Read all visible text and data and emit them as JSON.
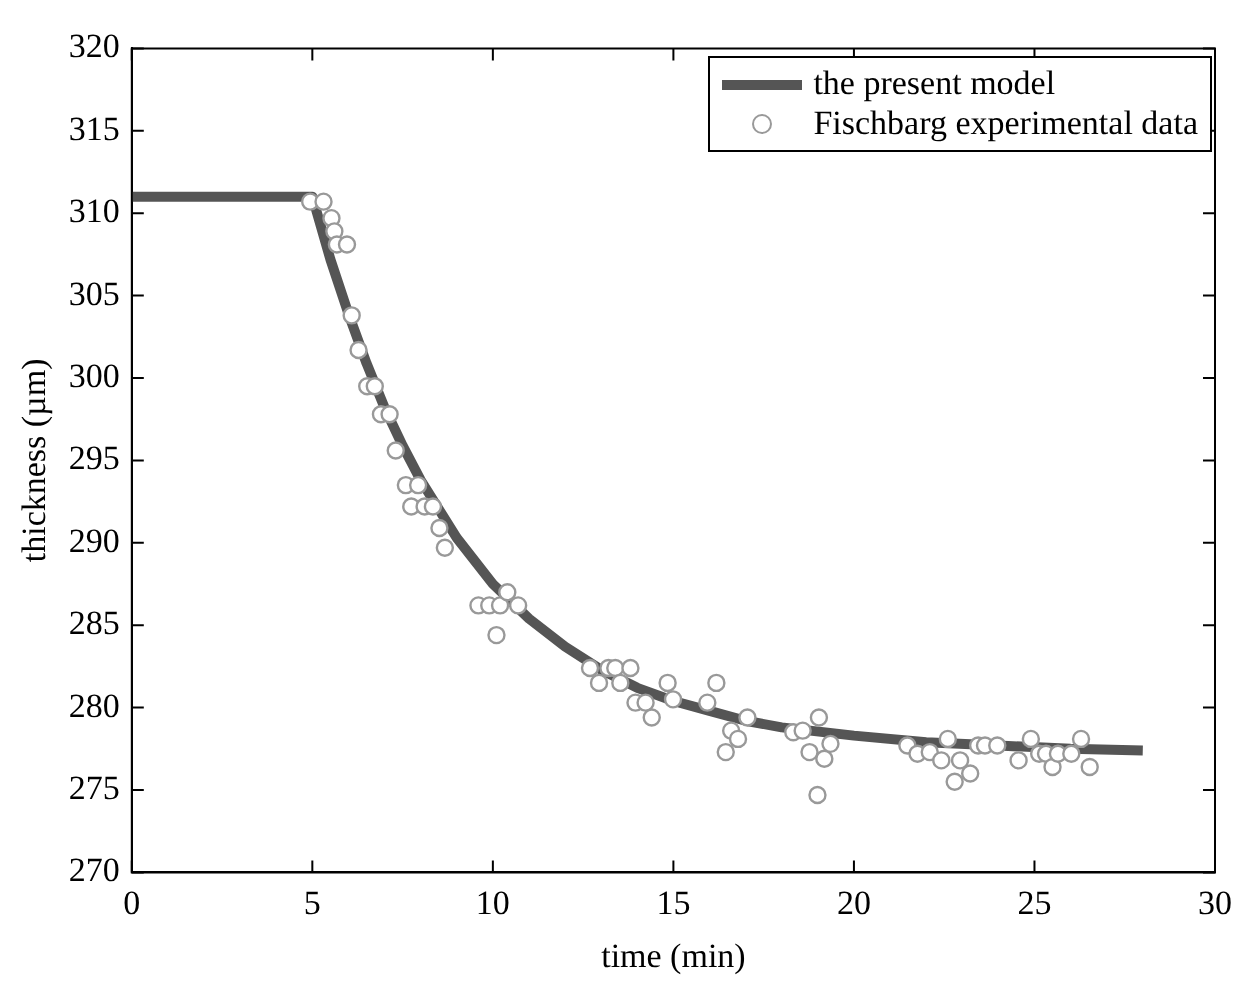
{
  "chart_data": {
    "type": "line",
    "xlabel": "time (min)",
    "ylabel": "thickness (µm)",
    "xlim": [
      0,
      30
    ],
    "xticks": [
      0,
      5,
      10,
      15,
      20,
      25,
      30
    ],
    "ylim": [
      270,
      320
    ],
    "yticks": [
      270,
      275,
      280,
      285,
      290,
      295,
      300,
      305,
      310,
      315,
      320
    ],
    "grid": false,
    "legend": "top right",
    "series": [
      {
        "name": "the present model",
        "color": "#555555",
        "marker": "none",
        "line_style": "solid",
        "x": [
          0,
          5,
          5.5,
          6,
          6.5,
          7,
          7.5,
          8,
          9,
          10,
          11,
          12,
          13,
          14,
          15,
          16,
          17,
          18,
          20,
          22,
          24,
          26,
          28
        ],
        "values": [
          311,
          311,
          307.2,
          303.9,
          300.9,
          298.2,
          295.9,
          293.8,
          290.3,
          287.5,
          285.4,
          283.7,
          282.3,
          281.2,
          280.4,
          279.8,
          279.2,
          278.8,
          278.3,
          277.9,
          277.7,
          277.5,
          277.4
        ]
      },
      {
        "name": "Fischbarg experimental data",
        "type": "scatter",
        "color": "#999999",
        "marker": "circle",
        "x": [
          4.94,
          5.31,
          5.53,
          5.61,
          5.68,
          5.96,
          6.09,
          6.28,
          6.52,
          6.73,
          6.9,
          7.14,
          7.31,
          7.59,
          7.93,
          7.74,
          8.11,
          8.34,
          8.52,
          8.67,
          9.6,
          9.9,
          10.2,
          10.1,
          10.4,
          10.7,
          12.69,
          12.94,
          13.2,
          13.39,
          13.53,
          13.81,
          13.95,
          14.23,
          14.4,
          14.84,
          14.99,
          15.94,
          16.19,
          16.45,
          16.6,
          16.79,
          17.05,
          18.32,
          18.58,
          18.77,
          19.03,
          18.99,
          19.18,
          19.35,
          21.48,
          21.76,
          22.1,
          22.42,
          22.6,
          22.94,
          22.79,
          23.22,
          23.44,
          23.63,
          23.97,
          24.56,
          24.9,
          25.13,
          25.32,
          25.5,
          25.65,
          26.02,
          26.29,
          26.53
        ],
        "values": [
          310.7,
          310.7,
          309.7,
          308.9,
          308.1,
          308.1,
          303.8,
          301.7,
          299.5,
          299.5,
          297.8,
          297.8,
          295.6,
          293.5,
          293.5,
          292.2,
          292.2,
          292.2,
          290.9,
          289.7,
          286.2,
          286.2,
          286.2,
          284.4,
          287,
          286.2,
          282.4,
          281.5,
          282.4,
          282.4,
          281.5,
          282.4,
          280.3,
          280.3,
          279.4,
          281.5,
          280.5,
          280.3,
          281.5,
          277.3,
          278.6,
          278.1,
          279.4,
          278.5,
          278.6,
          277.3,
          279.4,
          274.7,
          276.9,
          277.8,
          277.7,
          277.2,
          277.3,
          276.8,
          278.1,
          276.8,
          275.5,
          276,
          277.7,
          277.7,
          277.7,
          276.8,
          278.1,
          277.2,
          277.2,
          276.4,
          277.2,
          277.2,
          278.1,
          276.4
        ]
      }
    ]
  }
}
